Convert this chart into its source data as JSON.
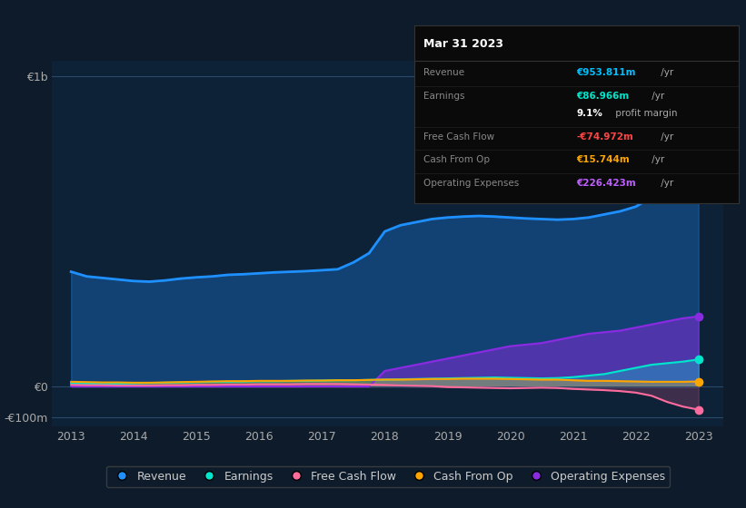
{
  "bg_color": "#0d1b2a",
  "plot_bg_color": "#0d2137",
  "years": [
    2013,
    2013.25,
    2013.5,
    2013.75,
    2014,
    2014.25,
    2014.5,
    2014.75,
    2015,
    2015.25,
    2015.5,
    2015.75,
    2016,
    2016.25,
    2016.5,
    2016.75,
    2017,
    2017.25,
    2017.5,
    2017.75,
    2018,
    2018.25,
    2018.5,
    2018.75,
    2019,
    2019.25,
    2019.5,
    2019.75,
    2020,
    2020.25,
    2020.5,
    2020.75,
    2021,
    2021.25,
    2021.5,
    2021.75,
    2022,
    2022.25,
    2022.5,
    2022.75,
    2023
  ],
  "revenue": [
    370,
    355,
    350,
    345,
    340,
    338,
    342,
    348,
    352,
    355,
    360,
    362,
    365,
    368,
    370,
    372,
    375,
    378,
    400,
    430,
    500,
    520,
    530,
    540,
    545,
    548,
    550,
    548,
    545,
    542,
    540,
    538,
    540,
    545,
    555,
    565,
    580,
    610,
    670,
    780,
    954
  ],
  "earnings": [
    10,
    9,
    8,
    9,
    10,
    11,
    12,
    13,
    14,
    15,
    15,
    16,
    17,
    17,
    18,
    18,
    19,
    20,
    20,
    21,
    22,
    23,
    24,
    25,
    26,
    27,
    28,
    29,
    28,
    27,
    26,
    27,
    30,
    35,
    40,
    50,
    60,
    70,
    75,
    80,
    87
  ],
  "free_cash_flow": [
    5,
    4,
    4,
    3,
    3,
    3,
    4,
    4,
    5,
    5,
    6,
    6,
    7,
    7,
    7,
    8,
    8,
    8,
    7,
    6,
    5,
    3,
    2,
    1,
    -2,
    -3,
    -4,
    -5,
    -6,
    -5,
    -4,
    -5,
    -8,
    -10,
    -12,
    -15,
    -20,
    -30,
    -50,
    -65,
    -75
  ],
  "cash_from_op": [
    15,
    14,
    13,
    13,
    12,
    12,
    13,
    14,
    15,
    16,
    17,
    17,
    18,
    18,
    18,
    19,
    19,
    20,
    20,
    21,
    22,
    22,
    23,
    24,
    24,
    25,
    25,
    25,
    24,
    23,
    22,
    22,
    20,
    18,
    18,
    17,
    16,
    15,
    15,
    15,
    16
  ],
  "operating_expenses": [
    0,
    0,
    0,
    0,
    0,
    0,
    0,
    0,
    0,
    0,
    0,
    0,
    0,
    0,
    0,
    0,
    0,
    0,
    0,
    0,
    50,
    60,
    70,
    80,
    90,
    100,
    110,
    120,
    130,
    135,
    140,
    150,
    160,
    170,
    175,
    180,
    190,
    200,
    210,
    220,
    226
  ],
  "ylim": [
    -130,
    1050
  ],
  "yticks": [
    -100,
    0,
    1000
  ],
  "ytick_labels": [
    "-€100m",
    "€0",
    "€1b"
  ],
  "xticks": [
    2013,
    2014,
    2015,
    2016,
    2017,
    2018,
    2019,
    2020,
    2021,
    2022,
    2023
  ],
  "legend": [
    {
      "label": "Revenue",
      "color": "#1e90ff"
    },
    {
      "label": "Earnings",
      "color": "#00e5cc"
    },
    {
      "label": "Free Cash Flow",
      "color": "#ff6b9d"
    },
    {
      "label": "Cash From Op",
      "color": "#ffa500"
    },
    {
      "label": "Operating Expenses",
      "color": "#8a2be2"
    }
  ],
  "line_colors": {
    "revenue": "#1e90ff",
    "earnings": "#00e5cc",
    "free_cash_flow": "#ff6b9d",
    "cash_from_op": "#ffa500",
    "operating_expenses": "#8a2be2"
  },
  "info_box": {
    "date": "Mar 31 2023",
    "rows": [
      {
        "label": "Revenue",
        "value": "€953.811m",
        "value_color": "#00bfff",
        "suffix": " /yr",
        "bold_value": true
      },
      {
        "label": "Earnings",
        "value": "€86.966m",
        "value_color": "#00e5cc",
        "suffix": " /yr",
        "bold_value": true
      },
      {
        "label": "",
        "value": "9.1%",
        "value_color": "#ffffff",
        "suffix": " profit margin",
        "bold_value": true
      },
      {
        "label": "Free Cash Flow",
        "value": "-€74.972m",
        "value_color": "#ff4444",
        "suffix": " /yr",
        "bold_value": true
      },
      {
        "label": "Cash From Op",
        "value": "€15.744m",
        "value_color": "#ffa500",
        "suffix": " /yr",
        "bold_value": true
      },
      {
        "label": "Operating Expenses",
        "value": "€226.423m",
        "value_color": "#bf5fff",
        "suffix": " /yr",
        "bold_value": true
      }
    ]
  }
}
